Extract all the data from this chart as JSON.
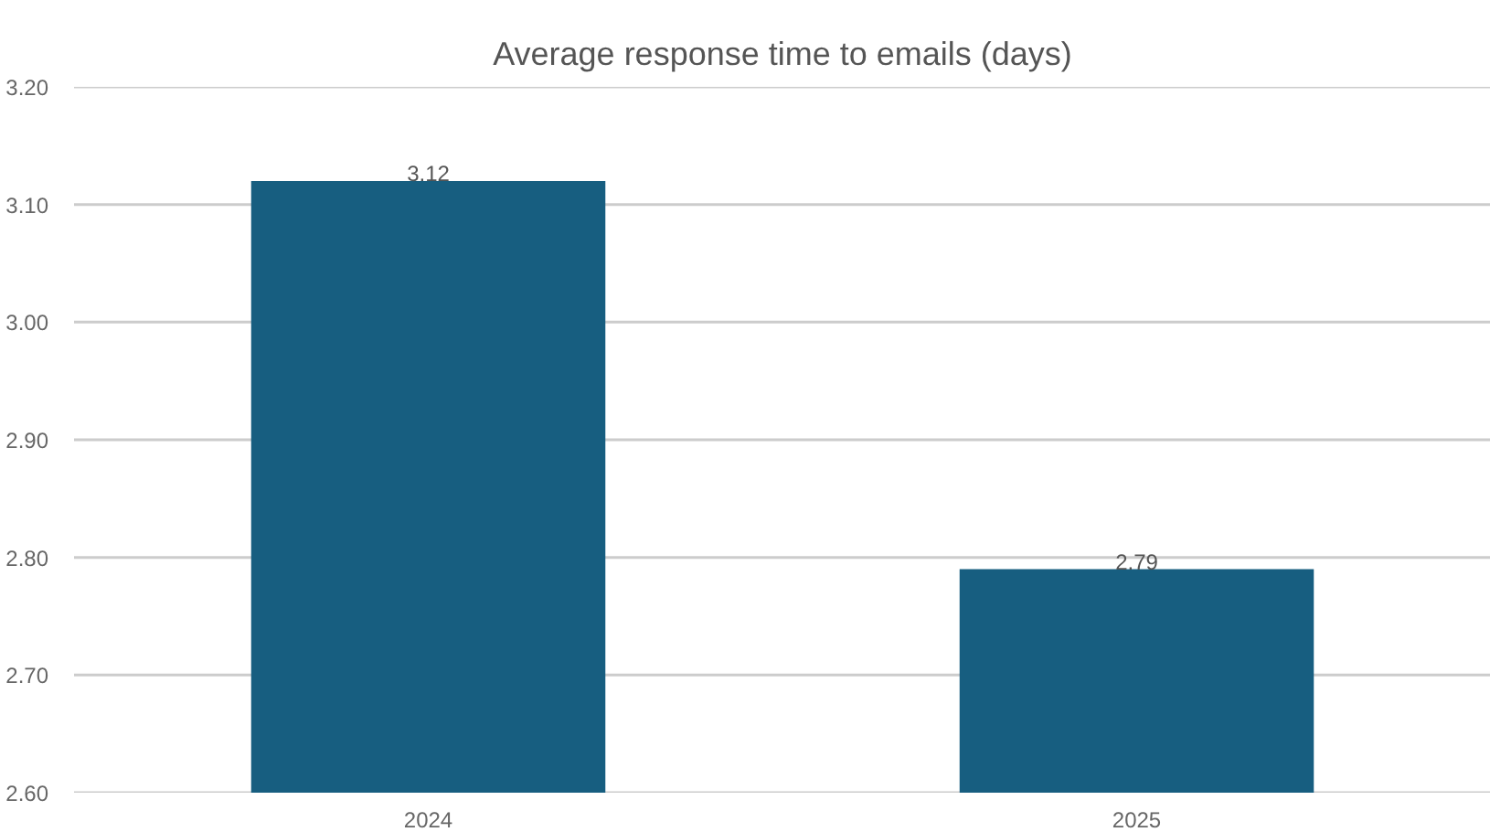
{
  "chart_data": {
    "type": "bar",
    "title": "Average response time to emails (days)",
    "categories": [
      "2024",
      "2025"
    ],
    "values": [
      3.12,
      2.79
    ],
    "color": "#175e80",
    "ylim": [
      2.6,
      3.2
    ],
    "yticks": [
      {
        "value": 2.6,
        "label": "2.60"
      },
      {
        "value": 2.7,
        "label": "2.70"
      },
      {
        "value": 2.8,
        "label": "2.80"
      },
      {
        "value": 2.9,
        "label": "2.90"
      },
      {
        "value": 3.0,
        "label": "3.00"
      },
      {
        "value": 3.1,
        "label": "3.10"
      },
      {
        "value": 3.2,
        "label": "3.20"
      }
    ],
    "grid": "y",
    "data_labels": true
  }
}
